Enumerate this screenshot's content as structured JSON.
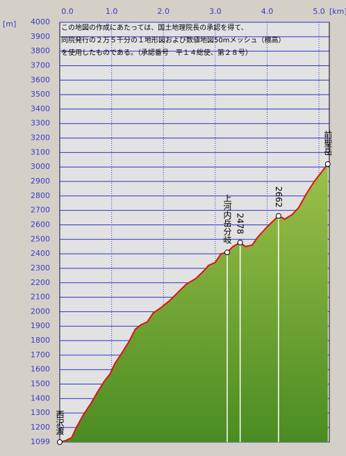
{
  "chart_data": {
    "type": "area",
    "x_label": "[km]",
    "y_label": "[m]",
    "notice": [
      "この地図の作成にあたっては、国土地理院長の承認を得て、",
      "同院発行の２万５千分の１地形図および数値地図50mメッシュ（標高）",
      "を使用したものである。（承認番号　平１４総使、第２８号）"
    ],
    "xlim": [
      0,
      5.2
    ],
    "ylim": [
      1099,
      4000
    ],
    "xticks": [
      {
        "value": 0,
        "label": "0.0"
      },
      {
        "value": 1,
        "label": "1.0"
      },
      {
        "value": 2,
        "label": "2.0"
      },
      {
        "value": 3,
        "label": "3.0"
      },
      {
        "value": 4,
        "label": "4.0"
      },
      {
        "value": 5,
        "label": "5.0"
      }
    ],
    "yticks": [
      1099,
      1200,
      1300,
      1400,
      1500,
      1600,
      1700,
      1800,
      1900,
      2000,
      2100,
      2200,
      2300,
      2400,
      2500,
      2600,
      2700,
      2800,
      2900,
      3000,
      3100,
      3200,
      3300,
      3400,
      3500,
      3600,
      3700,
      3800,
      3900,
      4000
    ],
    "grid": true,
    "line_color": "#e01010",
    "x": [
      0,
      0.12,
      0.23,
      0.32,
      0.46,
      0.59,
      0.72,
      0.86,
      0.97,
      1.06,
      1.19,
      1.33,
      1.46,
      1.57,
      1.69,
      1.8,
      1.96,
      2.13,
      2.27,
      2.44,
      2.63,
      2.8,
      2.87,
      3.0,
      3.11,
      3.23,
      3.34,
      3.48,
      3.58,
      3.71,
      3.83,
      4.01,
      4.22,
      4.34,
      4.48,
      4.61,
      4.75,
      4.91,
      5.04,
      5.17
    ],
    "values": [
      1099,
      1110,
      1130,
      1200,
      1290,
      1360,
      1440,
      1520,
      1570,
      1640,
      1710,
      1790,
      1880,
      1910,
      1930,
      1990,
      2030,
      2080,
      2130,
      2190,
      2230,
      2290,
      2320,
      2340,
      2400,
      2410,
      2450,
      2478,
      2450,
      2460,
      2520,
      2590,
      2662,
      2640,
      2670,
      2720,
      2810,
      2900,
      2960,
      3020
    ],
    "waypoints": [
      {
        "name": "西沢渡",
        "x": 0,
        "y": 1099
      },
      {
        "name": "上河内岳分岐",
        "x": 3.23,
        "y": 2410
      },
      {
        "x": 3.48,
        "y": 2478
      },
      {
        "x": 4.22,
        "y": 2662
      },
      {
        "name": "前聖岳",
        "x": 5.17,
        "y": 3020
      }
    ]
  }
}
